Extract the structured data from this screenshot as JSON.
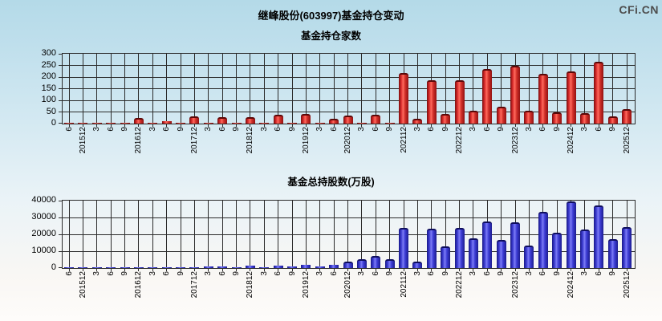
{
  "page": {
    "watermark": "CFi.CN",
    "title": "继峰股份(603997)基金持仓变动"
  },
  "colors": {
    "background_top": "#b4dae8",
    "background_bottom": "#fefcfa",
    "grid": "#2b2b2b",
    "bar_red": "#d92b2b",
    "bar_blue": "#3b3bd0",
    "watermark_text": "#4d4d4d",
    "title_text": "#000000"
  },
  "chart_data": [
    {
      "type": "bar",
      "title": "基金持仓家数",
      "bar_style": "red",
      "legend_position": "none",
      "grid": true,
      "ylim": [
        0,
        300
      ],
      "ytick_step": 50,
      "xlabel": "",
      "ylabel": "",
      "categories": [
        "6",
        "201512",
        "3",
        "6",
        "9",
        "201612",
        "3",
        "6",
        "9",
        "201712",
        "3",
        "6",
        "9",
        "201812",
        "3",
        "6",
        "9",
        "201912",
        "3",
        "6",
        "202012",
        "3",
        "6",
        "9",
        "202112",
        "3",
        "6",
        "9",
        "202212",
        "3",
        "6",
        "9",
        "202312",
        "3",
        "6",
        "9",
        "202412",
        "3",
        "6",
        "9",
        "202512"
      ],
      "values": [
        2,
        3,
        1,
        3,
        1,
        16,
        2,
        12,
        2,
        25,
        3,
        20,
        2,
        21,
        3,
        31,
        3,
        35,
        3,
        15,
        29,
        4,
        30,
        3,
        210,
        15,
        180,
        36,
        181,
        50,
        226,
        64,
        240,
        47,
        208,
        43,
        216,
        39,
        258,
        24,
        56
      ]
    },
    {
      "type": "bar",
      "title": "基金总持股数(万股)",
      "bar_style": "blue",
      "legend_position": "none",
      "grid": true,
      "ylim": [
        0,
        40000
      ],
      "ytick_step": 10000,
      "xlabel": "",
      "ylabel": "",
      "categories": [
        "6",
        "201512",
        "3",
        "6",
        "9",
        "201612",
        "3",
        "6",
        "9",
        "201712",
        "3",
        "6",
        "9",
        "201812",
        "3",
        "6",
        "9",
        "201912",
        "3",
        "6",
        "202012",
        "3",
        "6",
        "9",
        "202112",
        "3",
        "6",
        "9",
        "202212",
        "3",
        "6",
        "9",
        "202312",
        "3",
        "6",
        "9",
        "202412",
        "3",
        "6",
        "9",
        "202512"
      ],
      "values": [
        300,
        350,
        200,
        300,
        200,
        500,
        300,
        400,
        300,
        500,
        800,
        800,
        600,
        1300,
        700,
        1300,
        900,
        1900,
        1000,
        1700,
        3000,
        4400,
        6000,
        4500,
        23000,
        2800,
        22300,
        11700,
        22800,
        16900,
        26500,
        15800,
        26000,
        12300,
        32600,
        20000,
        38500,
        21700,
        36200,
        16100,
        23200
      ]
    }
  ]
}
